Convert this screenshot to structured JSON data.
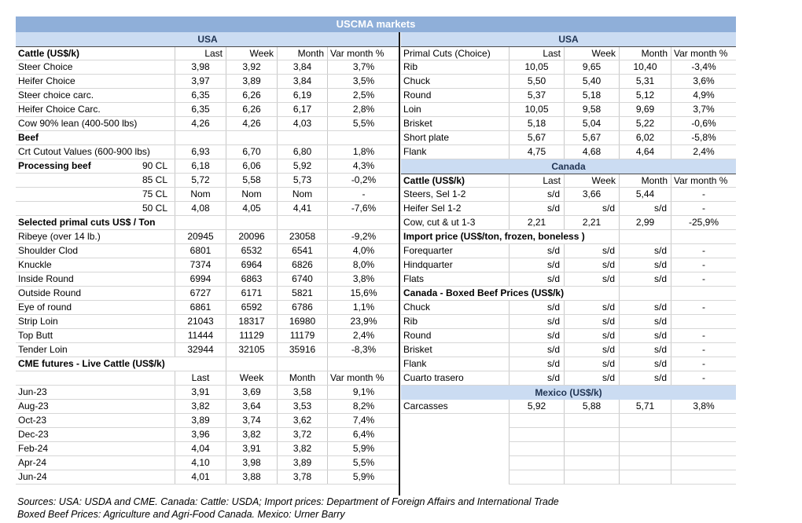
{
  "title": "USCMA markets",
  "colors": {
    "title_bar_bg": "#8FAFD9",
    "band_bg": "#CBDCF2",
    "band_text": "#1F3352",
    "divider": "#1a1a1a"
  },
  "columns": [
    "Last",
    "Week",
    "Month",
    "Var month %"
  ],
  "left": {
    "rows": [
      {
        "t": "band",
        "l": "USA"
      },
      {
        "t": "head",
        "l": "Cattle (US$/k)",
        "bold": true,
        "dark": true
      },
      {
        "t": "d",
        "l": "Steer Choice",
        "v": [
          "3,98",
          "3,92",
          "3,84",
          "3,7%"
        ]
      },
      {
        "t": "d",
        "l": "Heifer Choice",
        "v": [
          "3,97",
          "3,89",
          "3,84",
          "3,5%"
        ]
      },
      {
        "t": "d",
        "l": "Steer choice carc.",
        "v": [
          "6,35",
          "6,26",
          "6,19",
          "2,5%"
        ]
      },
      {
        "t": "d",
        "l": "Heifer Choice Carc.",
        "v": [
          "6,35",
          "6,26",
          "6,17",
          "2,8%"
        ]
      },
      {
        "t": "d",
        "l": "Cow 90% lean (400-500 lbs)",
        "v": [
          "4,26",
          "4,26",
          "4,03",
          "5,5%"
        ]
      },
      {
        "t": "sec",
        "l": "Beef",
        "span": 1
      },
      {
        "t": "d",
        "l": "Crt Cutout Values (600-900 lbs)",
        "v": [
          "6,93",
          "6,70",
          "6,80",
          "1,8%"
        ]
      },
      {
        "t": "d",
        "l": "Processing beef",
        "l2": "90 CL",
        "bold": true,
        "v": [
          "6,18",
          "6,06",
          "5,92",
          "4,3%"
        ]
      },
      {
        "t": "d",
        "l": "",
        "l2": "85 CL",
        "v": [
          "5,72",
          "5,58",
          "5,73",
          "-0,2%"
        ]
      },
      {
        "t": "d",
        "l": "",
        "l2": "75 CL",
        "v": [
          "Nom",
          "Nom",
          "Nom",
          "-"
        ]
      },
      {
        "t": "d",
        "l": "",
        "l2": "50 CL",
        "v": [
          "4,08",
          "4,05",
          "4,41",
          "-7,6%"
        ]
      },
      {
        "t": "sec",
        "l": "Selected primal cuts US$ / Ton",
        "span": 1
      },
      {
        "t": "d",
        "l": "Ribeye (over 14 lb.)",
        "v": [
          "20945",
          "20096",
          "23058",
          "-9,2%"
        ]
      },
      {
        "t": "d",
        "l": "Shoulder Clod",
        "v": [
          "6801",
          "6532",
          "6541",
          "4,0%"
        ]
      },
      {
        "t": "d",
        "l": "Knuckle",
        "v": [
          "7374",
          "6964",
          "6826",
          "8,0%"
        ]
      },
      {
        "t": "d",
        "l": "Inside Round",
        "v": [
          "6994",
          "6863",
          "6740",
          "3,8%"
        ]
      },
      {
        "t": "d",
        "l": "Outside Round",
        "v": [
          "6727",
          "6171",
          "5821",
          "15,6%"
        ]
      },
      {
        "t": "d",
        "l": "Eye of round",
        "v": [
          "6861",
          "6592",
          "6786",
          "1,1%"
        ]
      },
      {
        "t": "d",
        "l": "Strip Loin",
        "v": [
          "21043",
          "18317",
          "16980",
          "23,9%"
        ]
      },
      {
        "t": "d",
        "l": "Top Butt",
        "v": [
          "11444",
          "11129",
          "11179",
          "2,4%"
        ]
      },
      {
        "t": "d",
        "l": "Tender Loin",
        "v": [
          "32944",
          "32105",
          "35916",
          "-8,3%"
        ]
      },
      {
        "t": "sec",
        "l": "CME futures - Live Cattle (US$/k)",
        "span": 2
      },
      {
        "t": "head",
        "l": "",
        "center": true
      },
      {
        "t": "d",
        "l": "Jun-23",
        "v": [
          "3,91",
          "3,69",
          "3,58",
          "9,1%"
        ]
      },
      {
        "t": "d",
        "l": "Aug-23",
        "v": [
          "3,82",
          "3,64",
          "3,53",
          "8,2%"
        ]
      },
      {
        "t": "d",
        "l": "Oct-23",
        "v": [
          "3,89",
          "3,74",
          "3,62",
          "7,4%"
        ]
      },
      {
        "t": "d",
        "l": "Dec-23",
        "v": [
          "3,96",
          "3,82",
          "3,72",
          "6,4%"
        ]
      },
      {
        "t": "d",
        "l": "Feb-24",
        "v": [
          "4,04",
          "3,91",
          "3,82",
          "5,9%"
        ]
      },
      {
        "t": "d",
        "l": "Apr-24",
        "v": [
          "4,10",
          "3,98",
          "3,89",
          "5,5%"
        ]
      },
      {
        "t": "d",
        "l": "Jun-24",
        "v": [
          "4,01",
          "3,88",
          "3,78",
          "5,9%"
        ]
      }
    ]
  },
  "right": {
    "rows": [
      {
        "t": "band",
        "l": "USA"
      },
      {
        "t": "head",
        "l": "Primal Cuts (Choice)",
        "dark": true
      },
      {
        "t": "d",
        "l": "Rib",
        "v": [
          "10,05",
          "9,65",
          "10,40",
          "-3,4%"
        ]
      },
      {
        "t": "d",
        "l": "Chuck",
        "v": [
          "5,50",
          "5,40",
          "5,31",
          "3,6%"
        ]
      },
      {
        "t": "d",
        "l": "Round",
        "v": [
          "5,37",
          "5,18",
          "5,12",
          "4,9%"
        ]
      },
      {
        "t": "d",
        "l": "Loin",
        "v": [
          "10,05",
          "9,58",
          "9,69",
          "3,7%"
        ]
      },
      {
        "t": "d",
        "l": "Brisket",
        "v": [
          "5,18",
          "5,04",
          "5,22",
          "-0,6%"
        ]
      },
      {
        "t": "d",
        "l": "Short plate",
        "v": [
          "5,67",
          "5,67",
          "6,02",
          "-5,8%"
        ]
      },
      {
        "t": "d",
        "l": "Flank",
        "v": [
          "4,75",
          "4,68",
          "4,64",
          "2,4%"
        ]
      },
      {
        "t": "band",
        "l": "Canada"
      },
      {
        "t": "head",
        "l": "Cattle (US$/k)",
        "bold": true,
        "dark": true
      },
      {
        "t": "d",
        "l": "Steers, Sel 1-2",
        "v": [
          "s/d",
          "3,66",
          "5,44",
          "-"
        ]
      },
      {
        "t": "d",
        "l": "Heifer Sel 1-2",
        "v": [
          "s/d",
          "s/d",
          "s/d",
          "-"
        ]
      },
      {
        "t": "d",
        "l": "Cow, cut & ut 1-3",
        "v": [
          "2,21",
          "2,21",
          "2,99",
          "-25,9%"
        ]
      },
      {
        "t": "sec",
        "l": "Import price (US$/ton, frozen, boneless )",
        "span": 3
      },
      {
        "t": "d",
        "l": "Forequarter",
        "v": [
          "s/d",
          "s/d",
          "s/d",
          "-"
        ]
      },
      {
        "t": "d",
        "l": "Hindquarter",
        "v": [
          "s/d",
          "s/d",
          "s/d",
          "-"
        ]
      },
      {
        "t": "d",
        "l": "Flats",
        "v": [
          "s/d",
          "s/d",
          "s/d",
          "-"
        ]
      },
      {
        "t": "sec",
        "l": "Canada - Boxed Beef Prices (US$/k)",
        "span": 3
      },
      {
        "t": "d",
        "l": "Chuck",
        "v": [
          "s/d",
          "s/d",
          "s/d",
          "-"
        ]
      },
      {
        "t": "d",
        "l": "Rib",
        "v": [
          "s/d",
          "s/d",
          "s/d",
          ""
        ]
      },
      {
        "t": "d",
        "l": "Round",
        "v": [
          "s/d",
          "s/d",
          "s/d",
          "-"
        ]
      },
      {
        "t": "d",
        "l": "Brisket",
        "v": [
          "s/d",
          "s/d",
          "s/d",
          "-"
        ]
      },
      {
        "t": "d",
        "l": "Flank",
        "v": [
          "s/d",
          "s/d",
          "s/d",
          "-"
        ]
      },
      {
        "t": "d",
        "l": "Cuarto trasero",
        "v": [
          "s/d",
          "s/d",
          "s/d",
          "-"
        ]
      },
      {
        "t": "band",
        "l": "Mexico (US$/k)"
      },
      {
        "t": "d",
        "l": "Carcasses",
        "v": [
          "5,92",
          "5,88",
          "5,71",
          "3,8%"
        ]
      },
      {
        "t": "e"
      },
      {
        "t": "e"
      },
      {
        "t": "e"
      },
      {
        "t": "e"
      },
      {
        "t": "e"
      }
    ]
  },
  "footer": {
    "line1": "Sources: USA: USDA and CME. Canada: Cattle: USDA; Import prices: Department of Foreign Affairs and International Trade",
    "line2": "Boxed Beef Prices: Agriculture and Agri-Food Canada. Mexico: Urner Barry"
  }
}
